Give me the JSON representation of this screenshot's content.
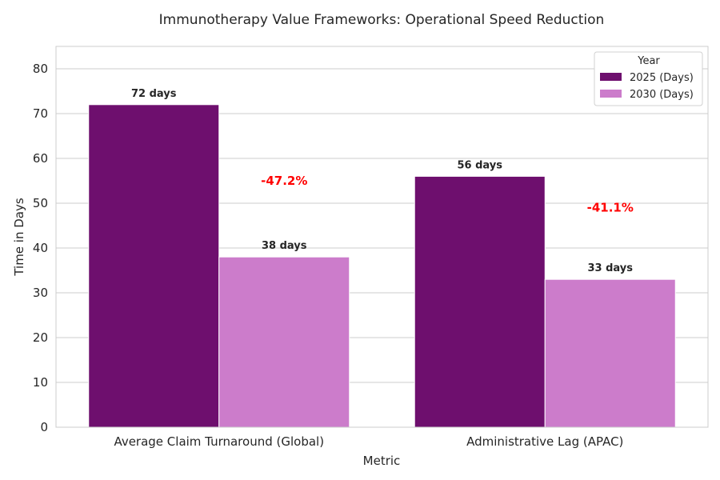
{
  "chart_data": {
    "type": "bar",
    "title": "Immunotherapy Value Frameworks: Operational Speed Reduction",
    "xlabel": "Metric",
    "ylabel": "Time in Days",
    "ylim": [
      0,
      85
    ],
    "yticks": [
      "0",
      "10",
      "20",
      "30",
      "40",
      "50",
      "60",
      "70",
      "80"
    ],
    "grid": "horizontal",
    "categories": [
      "Average Claim Turnaround (Global)",
      "Administrative Lag (APAC)"
    ],
    "series": [
      {
        "name": "2025 (Days)",
        "color": "#6e0f6e",
        "values": [
          72,
          56
        ],
        "labels": [
          "72 days",
          "56 days"
        ]
      },
      {
        "name": "2030 (Days)",
        "color": "#cc7ccb",
        "values": [
          38,
          33
        ],
        "labels": [
          "38 days",
          "33 days"
        ]
      }
    ],
    "annotations": [
      {
        "text": "-47.2%",
        "category": 0,
        "y": 55
      },
      {
        "text": "-41.1%",
        "category": 1,
        "y": 49
      }
    ],
    "annotation_color": "#ff0000",
    "legend": {
      "title": "Year",
      "placement": "top-right"
    }
  }
}
